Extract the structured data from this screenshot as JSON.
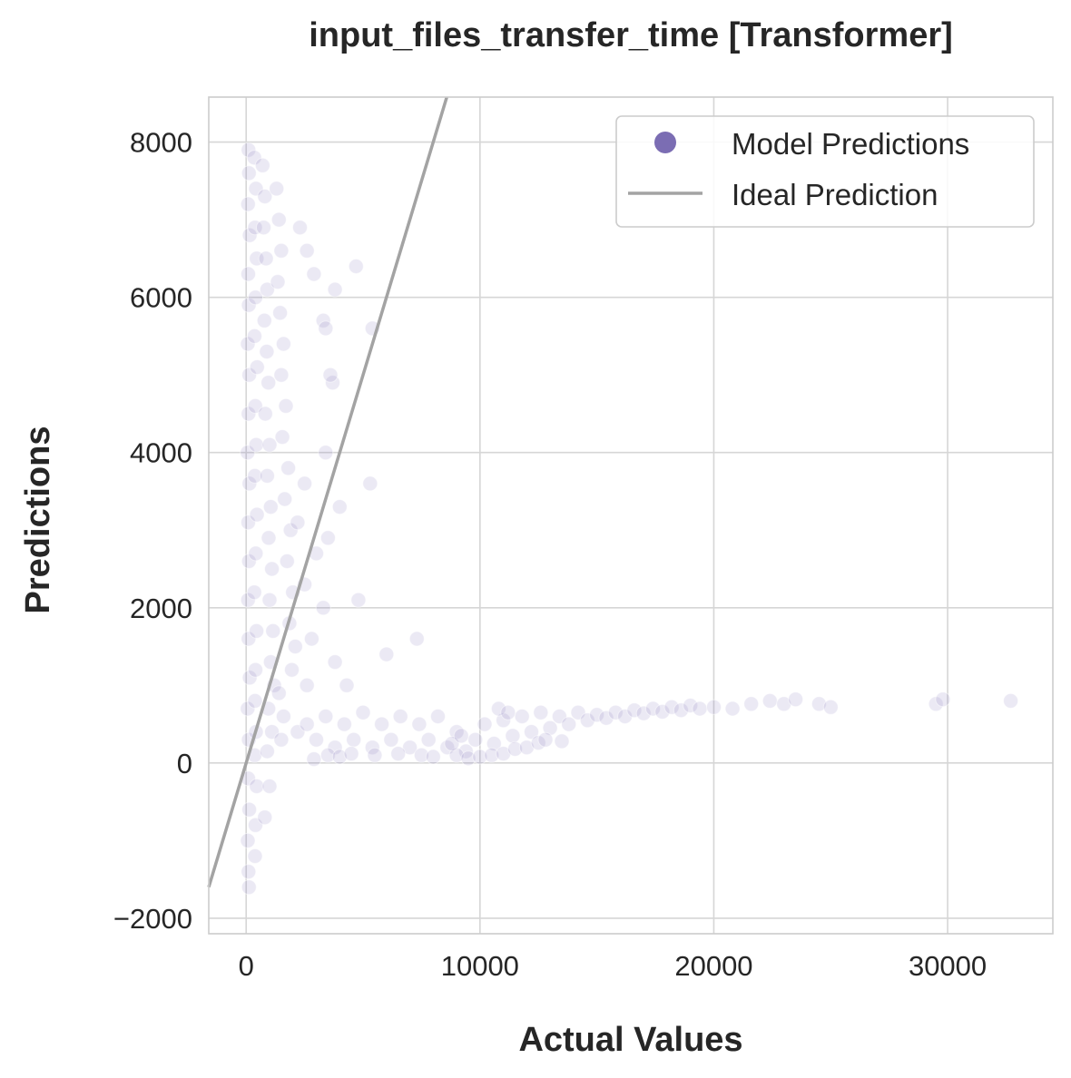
{
  "chart_data": {
    "type": "scatter",
    "title": "input_files_transfer_time [Transformer]",
    "xlabel": "Actual Values",
    "ylabel": "Predictions",
    "xlim": [
      -1600,
      34500
    ],
    "ylim": [
      -2200,
      8580
    ],
    "xticks": [
      0,
      10000,
      20000,
      30000
    ],
    "yticks": [
      -2000,
      0,
      2000,
      4000,
      6000,
      8000
    ],
    "xtick_labels": [
      "0",
      "10000",
      "20000",
      "30000"
    ],
    "ytick_labels": [
      "−2000",
      "0",
      "2000",
      "4000",
      "6000",
      "8000"
    ],
    "grid": true,
    "legend": {
      "placement": "top-right",
      "entries": [
        "Model Predictions",
        "Ideal Prediction"
      ]
    },
    "series": [
      {
        "name": "Model Predictions",
        "kind": "scatter",
        "color": "#7b6db3",
        "alpha": 0.15,
        "points": [
          [
            100,
            7900
          ],
          [
            120,
            7600
          ],
          [
            80,
            7200
          ],
          [
            150,
            6800
          ],
          [
            90,
            6300
          ],
          [
            110,
            5900
          ],
          [
            70,
            5400
          ],
          [
            130,
            5000
          ],
          [
            100,
            4500
          ],
          [
            60,
            4000
          ],
          [
            140,
            3600
          ],
          [
            90,
            3100
          ],
          [
            120,
            2600
          ],
          [
            80,
            2100
          ],
          [
            100,
            1600
          ],
          [
            150,
            1100
          ],
          [
            60,
            700
          ],
          [
            110,
            300
          ],
          [
            90,
            -200
          ],
          [
            130,
            -600
          ],
          [
            70,
            -1000
          ],
          [
            100,
            -1400
          ],
          [
            120,
            -1600
          ],
          [
            350,
            7800
          ],
          [
            420,
            7400
          ],
          [
            380,
            6900
          ],
          [
            450,
            6500
          ],
          [
            400,
            6000
          ],
          [
            360,
            5500
          ],
          [
            470,
            5100
          ],
          [
            390,
            4600
          ],
          [
            430,
            4100
          ],
          [
            370,
            3700
          ],
          [
            460,
            3200
          ],
          [
            410,
            2700
          ],
          [
            350,
            2200
          ],
          [
            440,
            1700
          ],
          [
            400,
            1200
          ],
          [
            380,
            800
          ],
          [
            420,
            400
          ],
          [
            360,
            100
          ],
          [
            450,
            -300
          ],
          [
            400,
            -800
          ],
          [
            380,
            -1200
          ],
          [
            700,
            7700
          ],
          [
            800,
            7300
          ],
          [
            750,
            6900
          ],
          [
            850,
            6500
          ],
          [
            900,
            6100
          ],
          [
            780,
            5700
          ],
          [
            880,
            5300
          ],
          [
            950,
            4900
          ],
          [
            820,
            4500
          ],
          [
            1000,
            4100
          ],
          [
            900,
            3700
          ],
          [
            1050,
            3300
          ],
          [
            960,
            2900
          ],
          [
            1100,
            2500
          ],
          [
            1000,
            2100
          ],
          [
            1150,
            1700
          ],
          [
            1050,
            1300
          ],
          [
            1200,
            1000
          ],
          [
            950,
            700
          ],
          [
            1100,
            400
          ],
          [
            900,
            150
          ],
          [
            1000,
            -300
          ],
          [
            800,
            -700
          ],
          [
            1300,
            7400
          ],
          [
            1400,
            7000
          ],
          [
            1500,
            6600
          ],
          [
            1350,
            6200
          ],
          [
            1450,
            5800
          ],
          [
            1600,
            5400
          ],
          [
            1500,
            5000
          ],
          [
            1700,
            4600
          ],
          [
            1550,
            4200
          ],
          [
            1800,
            3800
          ],
          [
            1650,
            3400
          ],
          [
            1900,
            3000
          ],
          [
            1750,
            2600
          ],
          [
            2000,
            2200
          ],
          [
            1850,
            1800
          ],
          [
            2100,
            1500
          ],
          [
            1950,
            1200
          ],
          [
            1400,
            900
          ],
          [
            1600,
            600
          ],
          [
            1500,
            300
          ],
          [
            2300,
            6900
          ],
          [
            2600,
            6600
          ],
          [
            2900,
            6300
          ],
          [
            3300,
            5700
          ],
          [
            3700,
            4900
          ],
          [
            3400,
            4000
          ],
          [
            2500,
            3600
          ],
          [
            2200,
            3100
          ],
          [
            3000,
            2700
          ],
          [
            2500,
            2300
          ],
          [
            3300,
            2000
          ],
          [
            2800,
            1600
          ],
          [
            3800,
            1300
          ],
          [
            2600,
            1000
          ],
          [
            4300,
            1000
          ],
          [
            4700,
            6400
          ],
          [
            3800,
            6100
          ],
          [
            3400,
            5600
          ],
          [
            5400,
            5600
          ],
          [
            3600,
            5000
          ],
          [
            5300,
            3600
          ],
          [
            4000,
            3300
          ],
          [
            3500,
            2900
          ],
          [
            4800,
            2100
          ],
          [
            6000,
            1400
          ],
          [
            7300,
            1600
          ],
          [
            2200,
            400
          ],
          [
            2600,
            500
          ],
          [
            3000,
            300
          ],
          [
            3400,
            600
          ],
          [
            3800,
            200
          ],
          [
            4200,
            500
          ],
          [
            4600,
            300
          ],
          [
            5000,
            650
          ],
          [
            5400,
            200
          ],
          [
            5800,
            500
          ],
          [
            6200,
            300
          ],
          [
            6600,
            600
          ],
          [
            7000,
            200
          ],
          [
            7400,
            500
          ],
          [
            7800,
            300
          ],
          [
            8200,
            600
          ],
          [
            8600,
            200
          ],
          [
            9000,
            400
          ],
          [
            9400,
            150
          ],
          [
            9800,
            300
          ],
          [
            10200,
            500
          ],
          [
            10600,
            250
          ],
          [
            11000,
            550
          ],
          [
            11400,
            350
          ],
          [
            11800,
            600
          ],
          [
            12200,
            400
          ],
          [
            12600,
            650
          ],
          [
            13000,
            450
          ],
          [
            13400,
            600
          ],
          [
            13800,
            500
          ],
          [
            14200,
            650
          ],
          [
            14600,
            550
          ],
          [
            15000,
            620
          ],
          [
            15400,
            580
          ],
          [
            15800,
            650
          ],
          [
            16200,
            600
          ],
          [
            16600,
            680
          ],
          [
            17000,
            640
          ],
          [
            17400,
            700
          ],
          [
            17800,
            660
          ],
          [
            18200,
            720
          ],
          [
            18600,
            680
          ],
          [
            19000,
            740
          ],
          [
            19400,
            700
          ],
          [
            20000,
            720
          ],
          [
            20800,
            700
          ],
          [
            21600,
            760
          ],
          [
            22400,
            800
          ],
          [
            23000,
            760
          ],
          [
            23500,
            820
          ],
          [
            24500,
            760
          ],
          [
            25000,
            720
          ],
          [
            29500,
            760
          ],
          [
            29800,
            820
          ],
          [
            32700,
            800
          ],
          [
            9000,
            100
          ],
          [
            9500,
            60
          ],
          [
            10000,
            80
          ],
          [
            10500,
            100
          ],
          [
            11000,
            120
          ],
          [
            11500,
            180
          ],
          [
            12000,
            200
          ],
          [
            12500,
            260
          ],
          [
            8800,
            250
          ],
          [
            9200,
            350
          ],
          [
            10800,
            700
          ],
          [
            11200,
            650
          ],
          [
            12800,
            300
          ],
          [
            13500,
            280
          ],
          [
            2900,
            50
          ],
          [
            3500,
            100
          ],
          [
            4000,
            80
          ],
          [
            4500,
            120
          ],
          [
            5500,
            100
          ],
          [
            6500,
            120
          ],
          [
            7500,
            100
          ],
          [
            8000,
            80
          ]
        ]
      },
      {
        "name": "Ideal Prediction",
        "kind": "line",
        "color": "#a3a3a3",
        "points": [
          [
            -1600,
            -1600
          ],
          [
            8580,
            8580
          ]
        ]
      }
    ]
  }
}
